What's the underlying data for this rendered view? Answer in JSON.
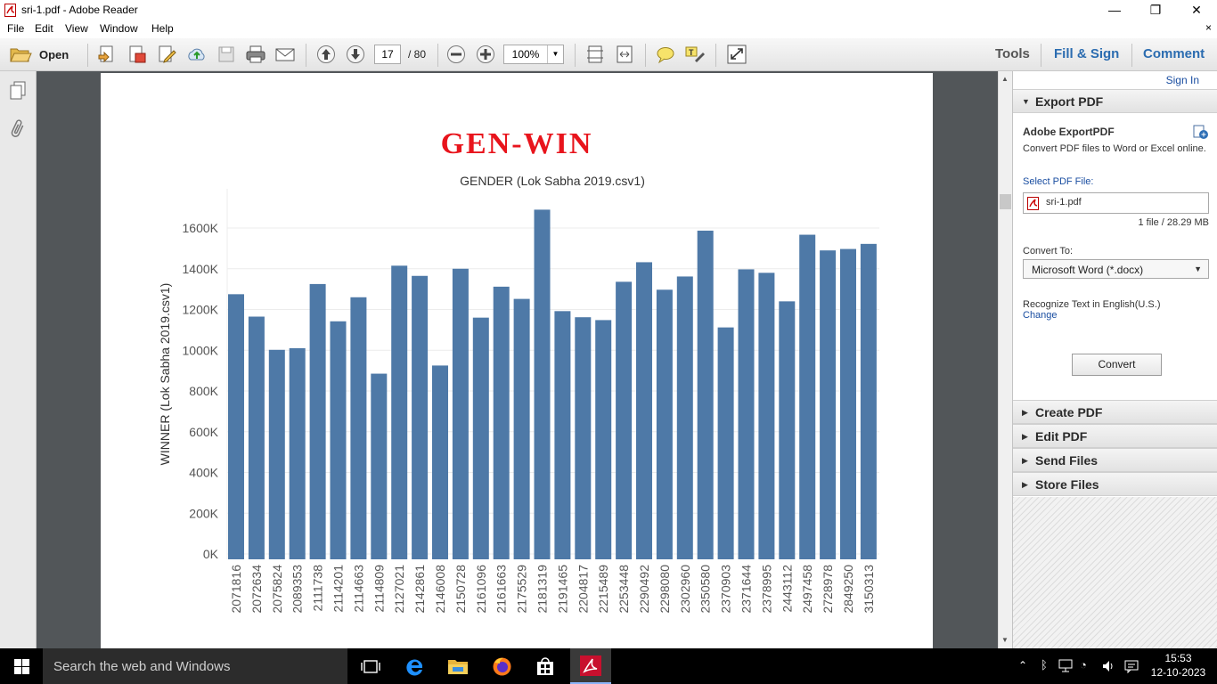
{
  "window": {
    "title": "sri-1.pdf - Adobe Reader",
    "minimize": "—",
    "restore": "❐",
    "close": "✕"
  },
  "menu": {
    "items": [
      "File",
      "Edit",
      "View",
      "Window",
      "Help"
    ],
    "close": "×"
  },
  "toolbar": {
    "open_label": "Open",
    "page_current": "17",
    "page_total": "/ 80",
    "zoom": "100%",
    "links": [
      "Tools",
      "Fill & Sign",
      "Comment"
    ]
  },
  "document": {
    "heading": "GEN-WIN"
  },
  "chart_data": {
    "type": "bar",
    "title": "GENDER (Lok Sabha 2019.csv1)",
    "ylabel": "WINNER (Lok Sabha 2019.csv1)",
    "xlabel": "",
    "ylim": [
      0,
      1700000
    ],
    "yticks": [
      0,
      200000,
      400000,
      600000,
      800000,
      1000000,
      1200000,
      1400000,
      1600000
    ],
    "ytick_labels": [
      "0K",
      "200K",
      "400K",
      "600K",
      "800K",
      "1000K",
      "1200K",
      "1400K",
      "1600K"
    ],
    "categories": [
      "2071816",
      "2072634",
      "2075824",
      "2089353",
      "2111738",
      "2114201",
      "2114663",
      "2114809",
      "2127021",
      "2142861",
      "2146008",
      "2150728",
      "2161096",
      "2161663",
      "2175529",
      "2181319",
      "2191465",
      "2204817",
      "2215489",
      "2253448",
      "2290492",
      "2298080",
      "2302960",
      "2350580",
      "2370903",
      "2371644",
      "2378995",
      "2443112",
      "2497458",
      "2728978",
      "2849250",
      "3150313"
    ],
    "values": [
      1275000,
      1165000,
      1002000,
      1010000,
      1325000,
      1142000,
      1260000,
      885000,
      1415000,
      1365000,
      925000,
      1400000,
      1160000,
      1312000,
      1252000,
      1690000,
      1192000,
      1162000,
      1148000,
      1336000,
      1432000,
      1297000,
      1362000,
      1587000,
      1112000,
      1397000,
      1380000,
      1240000,
      1567000,
      1490000,
      1497000,
      1522000
    ],
    "color": "#4e79a7",
    "grid": true
  },
  "panel": {
    "signin": "Sign In",
    "export_header": "Export PDF",
    "service_title": "Adobe ExportPDF",
    "service_desc": "Convert PDF files to Word or Excel online.",
    "select_label": "Select PDF File:",
    "file_name": "sri-1.pdf",
    "file_info": "1 file / 28.29 MB",
    "convert_to_label": "Convert To:",
    "convert_to_value": "Microsoft Word (*.docx)",
    "recognize_text": "Recognize Text in English(U.S.)",
    "change_link": "Change",
    "convert_button": "Convert",
    "sections": [
      "Create PDF",
      "Edit PDF",
      "Send Files",
      "Store Files"
    ]
  },
  "taskbar": {
    "search_placeholder": "Search the web and Windows",
    "time": "15:53",
    "date": "12-10-2023"
  }
}
